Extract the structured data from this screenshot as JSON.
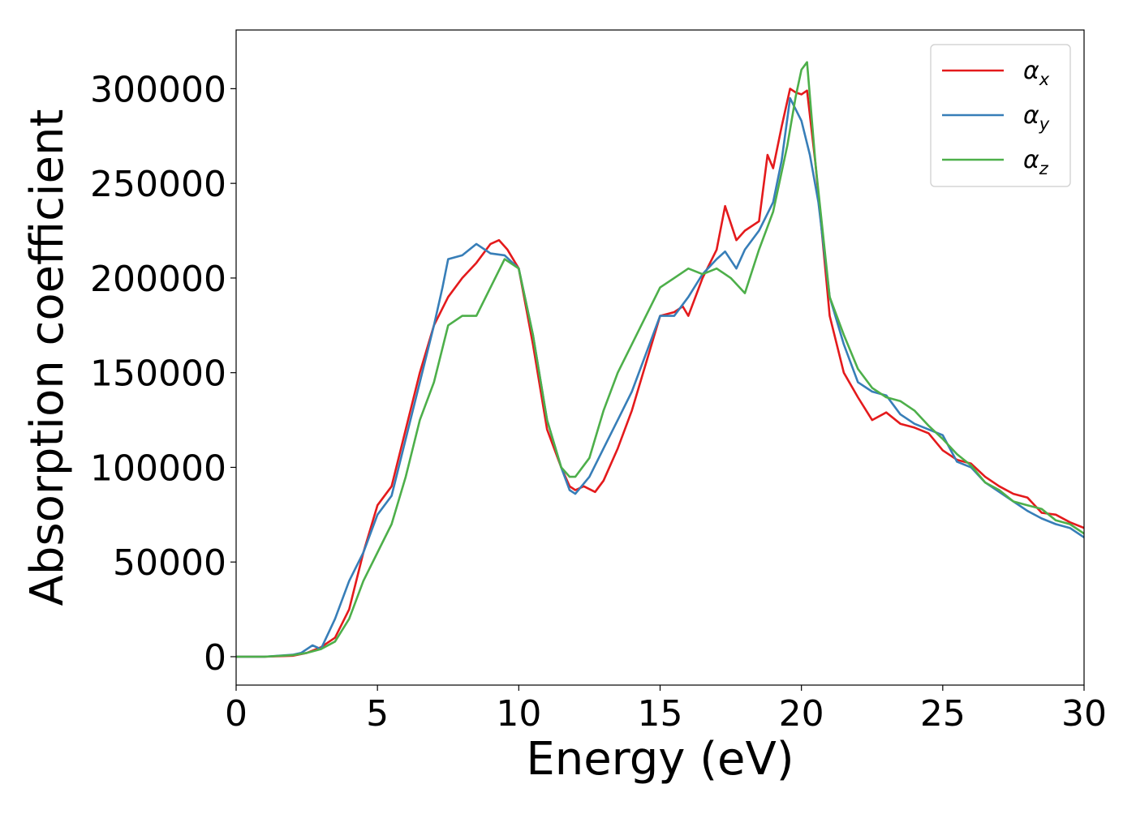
{
  "chart_data": {
    "type": "line",
    "title": "",
    "xlabel": "Energy (eV)",
    "ylabel": "Absorption coefficient",
    "xlim": [
      0,
      30
    ],
    "ylim": [
      -15000,
      331000
    ],
    "xticks": [
      "0",
      "5",
      "10",
      "15",
      "20",
      "25",
      "30"
    ],
    "yticks": [
      "0",
      "50000",
      "100000",
      "150000",
      "200000",
      "250000",
      "300000"
    ],
    "grid": false,
    "legend_position": "top-right",
    "series": [
      {
        "name": "αx",
        "symbol": "α",
        "subscript": "x",
        "color": "#e41a1c",
        "x": [
          0,
          1,
          2,
          2.5,
          3,
          3.5,
          4,
          4.5,
          5,
          5.5,
          6,
          6.5,
          7,
          7.5,
          8,
          8.5,
          9,
          9.3,
          9.6,
          10,
          10.5,
          11,
          11.5,
          11.8,
          12,
          12.3,
          12.7,
          13,
          13.5,
          14,
          14.5,
          15,
          15.5,
          15.8,
          16,
          16.5,
          17,
          17.3,
          17.7,
          18,
          18.5,
          18.8,
          19,
          19.3,
          19.6,
          19.8,
          20,
          20.2,
          20.5,
          21,
          21.5,
          22,
          22.5,
          23,
          23.5,
          24,
          24.5,
          25,
          25.5,
          26,
          26.5,
          27,
          27.5,
          28,
          28.5,
          29,
          29.5,
          30
        ],
        "y": [
          0,
          0,
          500,
          2000,
          5000,
          10000,
          25000,
          55000,
          80000,
          90000,
          120000,
          150000,
          175000,
          190000,
          200000,
          208000,
          218000,
          220000,
          215000,
          205000,
          165000,
          120000,
          100000,
          90000,
          88000,
          90000,
          87000,
          93000,
          110000,
          130000,
          155000,
          180000,
          182000,
          185000,
          180000,
          200000,
          215000,
          238000,
          220000,
          225000,
          230000,
          265000,
          258000,
          280000,
          300000,
          298000,
          297000,
          299000,
          260000,
          180000,
          150000,
          137000,
          125000,
          129000,
          123000,
          121000,
          118000,
          109000,
          104000,
          102000,
          95000,
          90000,
          86000,
          84000,
          76000,
          75000,
          71000,
          68000
        ]
      },
      {
        "name": "αy",
        "symbol": "α",
        "subscript": "y",
        "color": "#377eb8",
        "x": [
          0,
          1,
          2,
          2.3,
          2.7,
          3,
          3.5,
          4,
          4.5,
          5,
          5.5,
          6,
          6.5,
          7,
          7.3,
          7.5,
          8,
          8.5,
          9,
          9.5,
          10,
          10.5,
          11,
          11.5,
          11.8,
          12,
          12.5,
          13,
          13.5,
          14,
          14.5,
          15,
          15.5,
          16,
          16.5,
          17,
          17.3,
          17.7,
          18,
          18.5,
          19,
          19.3,
          19.6,
          20,
          20.3,
          20.6,
          21,
          21.5,
          22,
          22.5,
          23,
          23.5,
          24,
          24.5,
          25,
          25.5,
          26,
          26.5,
          27,
          27.5,
          28,
          28.5,
          29,
          29.5,
          30
        ],
        "y": [
          0,
          0,
          1000,
          2000,
          6000,
          4000,
          20000,
          40000,
          55000,
          75000,
          85000,
          115000,
          145000,
          175000,
          195000,
          210000,
          212000,
          218000,
          213000,
          212000,
          205000,
          170000,
          125000,
          100000,
          88000,
          86000,
          95000,
          110000,
          125000,
          140000,
          160000,
          180000,
          180000,
          190000,
          202000,
          210000,
          214000,
          205000,
          215000,
          225000,
          240000,
          262000,
          295000,
          283000,
          265000,
          240000,
          190000,
          165000,
          145000,
          140000,
          138000,
          128000,
          123000,
          120000,
          117000,
          103000,
          100000,
          92000,
          87000,
          82000,
          77000,
          73000,
          70000,
          68000,
          63000
        ]
      },
      {
        "name": "αz",
        "symbol": "α",
        "subscript": "z",
        "color": "#4daf4a",
        "x": [
          0,
          1,
          2,
          2.5,
          3,
          3.5,
          4,
          4.5,
          5,
          5.5,
          6,
          6.5,
          7,
          7.5,
          8,
          8.5,
          9,
          9.5,
          10,
          10.5,
          11,
          11.5,
          11.8,
          12,
          12.5,
          13,
          13.5,
          14,
          14.5,
          15,
          15.5,
          16,
          16.5,
          17,
          17.5,
          18,
          18.5,
          19,
          19.5,
          19.8,
          20,
          20.2,
          20.5,
          21,
          21.5,
          22,
          22.5,
          23,
          23.5,
          24,
          24.5,
          25,
          25.5,
          26,
          26.5,
          27,
          27.5,
          28,
          28.5,
          29,
          29.5,
          30
        ],
        "y": [
          0,
          0,
          800,
          2000,
          4000,
          8000,
          20000,
          40000,
          55000,
          70000,
          95000,
          125000,
          145000,
          175000,
          180000,
          180000,
          195000,
          210000,
          205000,
          170000,
          125000,
          100000,
          95000,
          95000,
          105000,
          130000,
          150000,
          165000,
          180000,
          195000,
          200000,
          205000,
          202000,
          205000,
          200000,
          192000,
          215000,
          235000,
          270000,
          296000,
          310000,
          314000,
          260000,
          190000,
          170000,
          152000,
          142000,
          137000,
          135000,
          130000,
          122000,
          115000,
          107000,
          101000,
          92000,
          88000,
          82000,
          80000,
          78000,
          72000,
          70000,
          65000
        ]
      }
    ]
  }
}
